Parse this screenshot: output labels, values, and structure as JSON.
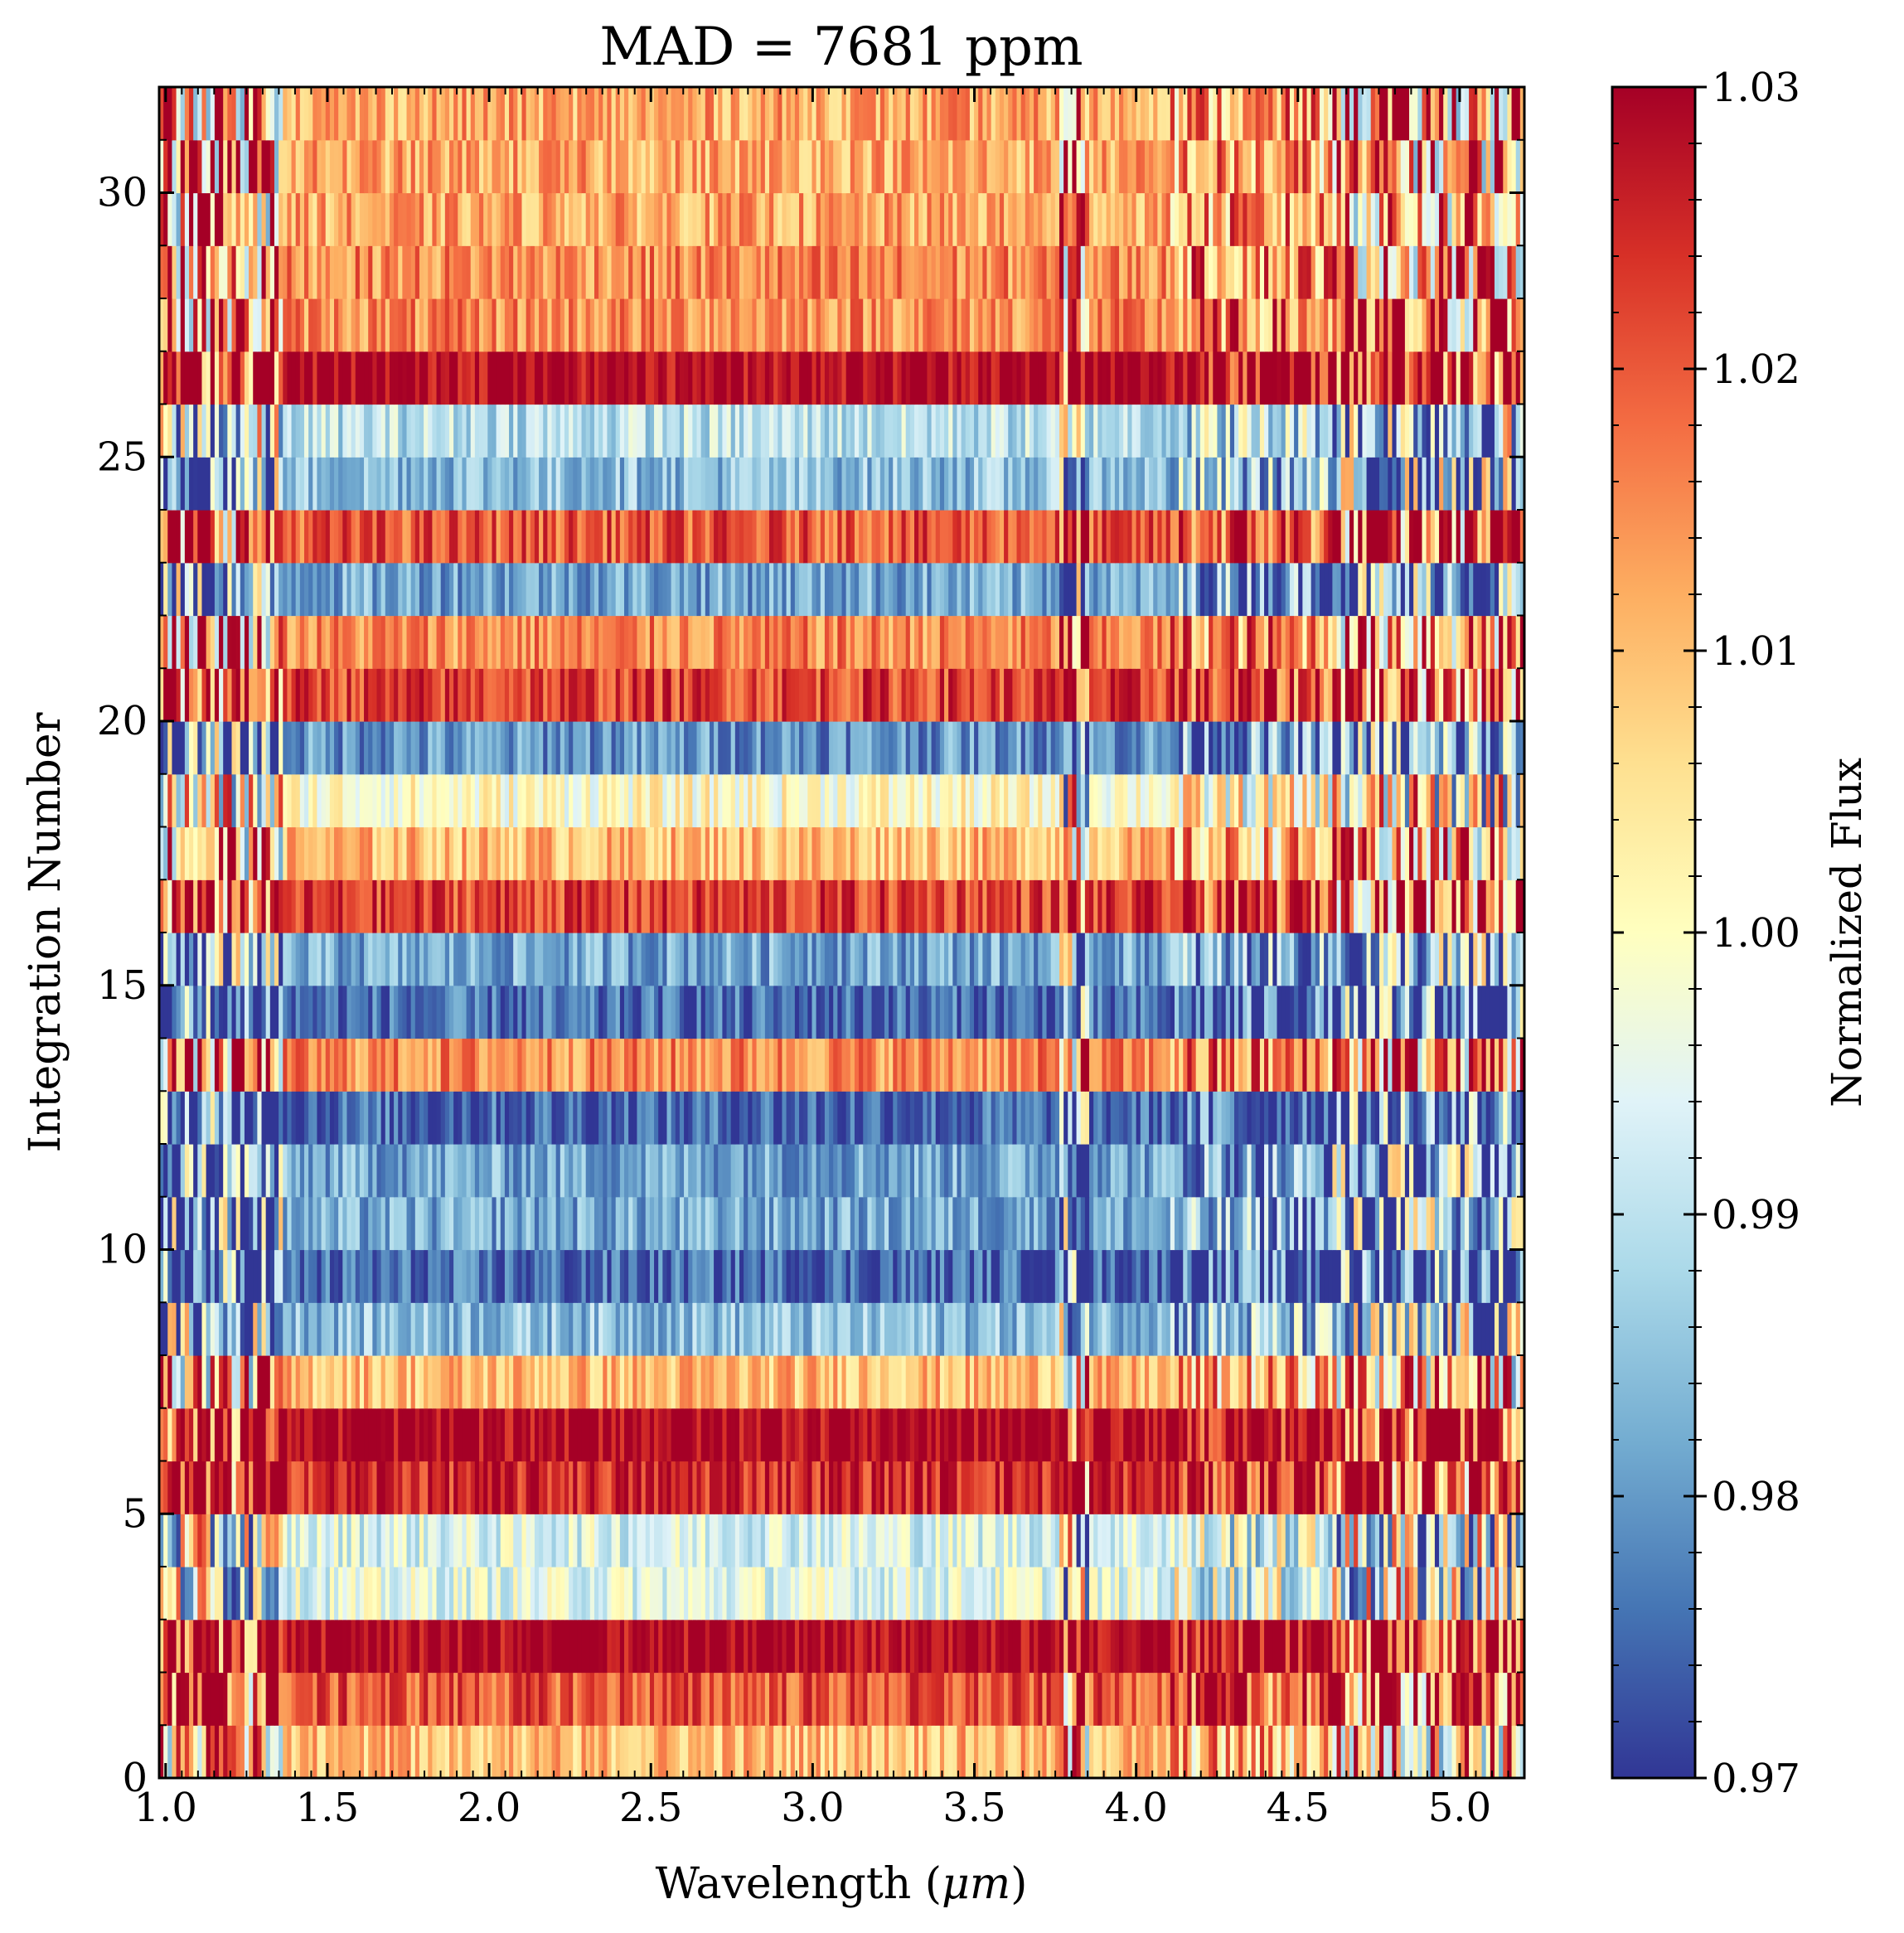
{
  "chart_data": {
    "type": "heatmap",
    "title": "MAD = 7681 ppm",
    "xlabel": "Wavelength (",
    "xlabel_unit": "μm",
    "xlabel_close": ")",
    "ylabel": "Integration Number",
    "colorbar_label": "Normalized Flux",
    "xlim": [
      0.98,
      5.2
    ],
    "ylim": [
      0,
      32
    ],
    "clim": [
      0.97,
      1.03
    ],
    "colormap": "RdYlBu_r",
    "x_ticks": [
      {
        "value": 1.0,
        "label": "1.0"
      },
      {
        "value": 1.5,
        "label": "1.5"
      },
      {
        "value": 2.0,
        "label": "2.0"
      },
      {
        "value": 2.5,
        "label": "2.5"
      },
      {
        "value": 3.0,
        "label": "3.0"
      },
      {
        "value": 3.5,
        "label": "3.5"
      },
      {
        "value": 4.0,
        "label": "4.0"
      },
      {
        "value": 4.5,
        "label": "4.5"
      },
      {
        "value": 5.0,
        "label": "5.0"
      }
    ],
    "y_ticks": [
      {
        "value": 0,
        "label": "0"
      },
      {
        "value": 5,
        "label": "5"
      },
      {
        "value": 10,
        "label": "10"
      },
      {
        "value": 15,
        "label": "15"
      },
      {
        "value": 20,
        "label": "20"
      },
      {
        "value": 25,
        "label": "25"
      },
      {
        "value": 30,
        "label": "30"
      }
    ],
    "colorbar_ticks": [
      {
        "value": 0.97,
        "label": "0.97"
      },
      {
        "value": 0.98,
        "label": "0.98"
      },
      {
        "value": 0.99,
        "label": "0.99"
      },
      {
        "value": 1.0,
        "label": "1.00"
      },
      {
        "value": 1.01,
        "label": "1.01"
      },
      {
        "value": 1.02,
        "label": "1.02"
      },
      {
        "value": 1.03,
        "label": "1.03"
      }
    ],
    "row_mean_flux": [
      1.01,
      1.02,
      1.03,
      0.995,
      0.994,
      1.025,
      1.03,
      1.01,
      0.985,
      0.975,
      0.982,
      0.982,
      0.975,
      1.015,
      0.975,
      0.982,
      1.022,
      1.01,
      1.0,
      0.98,
      1.022,
      1.015,
      0.982,
      1.02,
      0.985,
      0.99,
      1.03,
      1.015,
      1.015,
      1.012,
      1.012,
      1.012
    ],
    "band_gap_wavelength": 3.8,
    "gridlines": false
  }
}
